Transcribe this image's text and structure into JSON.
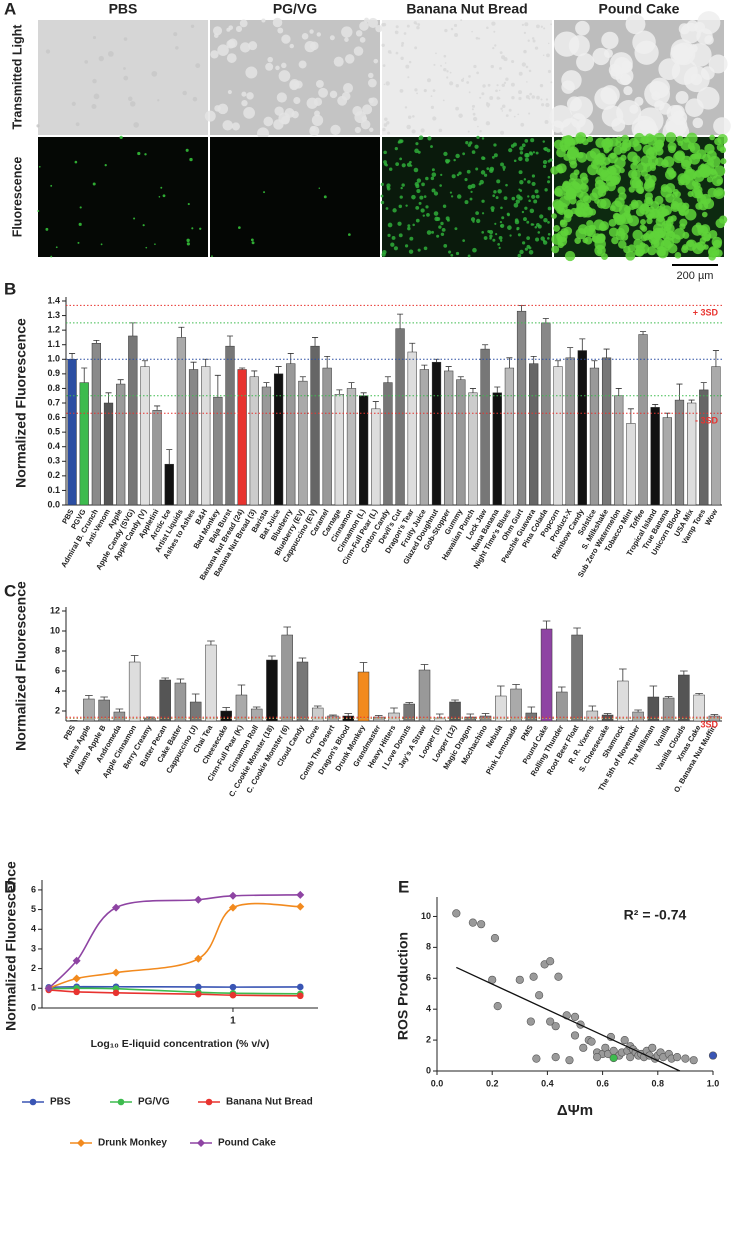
{
  "figure_a": {
    "panel": "A",
    "columns": [
      "PBS",
      "PG/VG",
      "Banana Nut Bread",
      "Pound Cake"
    ],
    "rows": [
      "Transmitted Light",
      "Fluorescence"
    ],
    "scale_bar": "200 µm"
  },
  "chart_data": [
    {
      "type": "bar",
      "panel": "B",
      "ylabel": "Normalized Fluorescence",
      "categories": [
        "PBS",
        "PGVG",
        "Admiral B. Crunch",
        "Anti-Venom",
        "Apple",
        "Apple Candy (SVG)",
        "Apple Candy (V)",
        "Appletini",
        "Arctic Ice",
        "Artist Liquids",
        "Ashes to Ashes",
        "B&H",
        "Bad Monkey",
        "Baja Burst",
        "Banana Nut Bread (24)",
        "Banana Nut Bread (3)",
        "Barista",
        "Bat Juice",
        "Blueberry",
        "Blueberry (EV)",
        "Cappuccino (EV)",
        "Caramel",
        "Carnage",
        "Cinnamon",
        "Cinnamon (L)",
        "Cinn-Full Pear (L)",
        "Cotton Candy",
        "Devil's Cut",
        "Dragon's Tear",
        "Fruity Juice",
        "Glazed Doughnut",
        "Gob-Stopper",
        "Gummy",
        "Hawaiian Punch",
        "Lock Jaw",
        "Nana Banana",
        "Night Time's Blues",
        "Ohm Gurt",
        "Peachie Guavara",
        "Pina Colada",
        "Popcorn",
        "Product-X",
        "Rainbow Candy",
        "Solstice",
        "S. Milkshake",
        "Sub Zero Watermelon",
        "Tobacco Mint",
        "Toffee",
        "Tropical Island",
        "True Banana",
        "Unicorn Blood",
        "USA Mix",
        "Vamp Toes",
        "Wow"
      ],
      "series": [
        {
          "values": [
            1.0,
            0.84,
            1.11,
            0.7,
            0.83,
            1.16,
            0.95,
            0.65,
            0.28,
            1.15,
            0.93,
            0.95,
            0.74,
            1.09,
            0.93,
            0.88,
            0.81,
            0.9,
            0.97,
            0.85,
            1.09,
            0.94,
            0.76,
            0.8,
            0.75,
            0.66,
            0.84,
            1.21,
            1.05,
            0.93,
            0.98,
            0.92,
            0.86,
            0.77,
            1.07,
            0.77,
            0.94,
            1.33,
            0.97,
            1.25,
            0.95,
            1.01,
            1.06,
            0.94,
            1.01,
            0.75,
            0.56,
            1.17,
            0.67,
            0.6,
            0.72,
            0.7,
            0.79,
            0.95
          ],
          "errors": [
            0.04,
            0.1,
            0.02,
            0.07,
            0.03,
            0.09,
            0.04,
            0.03,
            0.1,
            0.07,
            0.05,
            0.05,
            0.15,
            0.07,
            0.01,
            0.04,
            0.03,
            0.05,
            0.07,
            0.03,
            0.06,
            0.08,
            0.03,
            0.04,
            0.02,
            0.05,
            0.04,
            0.1,
            0.06,
            0.03,
            0.02,
            0.03,
            0.02,
            0.03,
            0.03,
            0.04,
            0.07,
            0.04,
            0.05,
            0.03,
            0.04,
            0.07,
            0.08,
            0.05,
            0.06,
            0.05,
            0.1,
            0.02,
            0.02,
            0.03,
            0.11,
            0.02,
            0.05,
            0.11
          ],
          "colors": [
            "#2b4ea2",
            "#3dbb4e",
            "#8a8a8a",
            "#555555",
            "#9a9a9a",
            "#777777",
            "#e0e0e0",
            "#9a9a9a",
            "#111111",
            "#aaaaaa",
            "#888888",
            "#dddddd",
            "#888888",
            "#777777",
            "#e8332f",
            "#cccccc",
            "#999999",
            "#111111",
            "#999999",
            "#aaaaaa",
            "#666666",
            "#999999",
            "#dddddd",
            "#bbbbbb",
            "#111111",
            "#dddddd",
            "#777777",
            "#777777",
            "#dddddd",
            "#aaaaaa",
            "#111111",
            "#aaaaaa",
            "#999999",
            "#cccccc",
            "#777777",
            "#111111",
            "#bbbbbb",
            "#888888",
            "#666666",
            "#888888",
            "#dddddd",
            "#999999",
            "#111111",
            "#999999",
            "#777777",
            "#aaaaaa",
            "#dddddd",
            "#999999",
            "#111111",
            "#aaaaaa",
            "#888888",
            "#dddddd",
            "#666666",
            "#aaaaaa"
          ]
        }
      ],
      "ylim": [
        0,
        1.4
      ],
      "yticks": [
        {
          "value": 0,
          "label": "0.0"
        },
        0.1,
        0.2,
        0.3,
        0.4,
        0.5,
        0.6,
        0.7,
        0.8,
        0.9,
        {
          "value": 1,
          "label": "1.0"
        },
        1.1,
        1.2,
        1.3,
        1.4
      ],
      "reference_lines": [
        {
          "value": 1.37,
          "color": "#e8332f",
          "label": "+ 3SD"
        },
        {
          "value": 1.25,
          "color": "#3dbb4e"
        },
        {
          "value": 1.0,
          "color": "#2b4ea2"
        },
        {
          "value": 0.75,
          "color": "#3dbb4e"
        },
        {
          "value": 0.63,
          "color": "#e8332f",
          "label": "- 3SD"
        }
      ]
    },
    {
      "type": "bar",
      "panel": "C",
      "ylabel": "Normalized Fluorescence",
      "categories": [
        "PBS",
        "Adams Apple",
        "Adams Apple B",
        "Andromeda",
        "Apple Cinnamon",
        "Berry Creamy",
        "Butter Pecan",
        "Cake Batter",
        "Cappuccino (J)",
        "Chai Tea",
        "Cheesecake",
        "Cinn-Full Pear (K)",
        "Cinnamon Roll",
        "C. Cookie Monster (18)",
        "C. Cookie Monster (6)",
        "Cloud Candy",
        "Clove",
        "Comb The Desert",
        "Dragon's Blood",
        "Drunk Monkey",
        "Grandmaster",
        "Heavy Hitters",
        "I Love Donuts",
        "Jay's A Straw",
        "Looper (3)",
        "Looper (12)",
        "Magic Dragon",
        "Mochachino",
        "Nebula",
        "Pink Lemonade",
        "PMS",
        "Pound Cake",
        "Rolling Thunder",
        "Root Beer Float",
        "R. R. Vixens",
        "S. Cheesecake",
        "Shamrock",
        "The 5th of November",
        "The Milkman",
        "Vanilla",
        "Vanilla Clouds",
        "Xmas Cake",
        "O. Banana Nut Muffin"
      ],
      "series": [
        {
          "values": [
            1.0,
            3.2,
            3.1,
            1.9,
            6.9,
            1.3,
            5.1,
            4.8,
            2.9,
            8.6,
            2.0,
            3.6,
            2.2,
            7.1,
            9.6,
            6.9,
            2.3,
            1.5,
            1.5,
            5.9,
            1.4,
            1.8,
            2.7,
            6.1,
            1.3,
            2.9,
            1.4,
            1.5,
            3.5,
            4.2,
            1.8,
            10.2,
            3.9,
            9.6,
            2.0,
            1.6,
            5.0,
            1.9,
            3.4,
            3.3,
            5.6,
            3.6,
            1.5
          ],
          "errors": [
            0.05,
            0.35,
            0.3,
            0.3,
            0.65,
            0.1,
            0.2,
            0.4,
            0.8,
            0.4,
            0.35,
            1.0,
            0.2,
            0.4,
            0.8,
            0.4,
            0.2,
            0.1,
            0.25,
            0.95,
            0.15,
            0.5,
            0.15,
            0.55,
            0.4,
            0.2,
            0.3,
            0.25,
            1.0,
            0.45,
            0.6,
            0.8,
            0.5,
            0.7,
            0.5,
            0.15,
            1.2,
            0.2,
            1.1,
            0.15,
            0.4,
            0.15,
            0.15
          ],
          "colors": [
            "#2b4ea2",
            "#aaaaaa",
            "#888888",
            "#999999",
            "#dddddd",
            "#888888",
            "#555555",
            "#999999",
            "#777777",
            "#dddddd",
            "#111111",
            "#aaaaaa",
            "#aaaaaa",
            "#111111",
            "#999999",
            "#777777",
            "#cccccc",
            "#aaaaaa",
            "#111111",
            "#f28a1e",
            "#aaaaaa",
            "#cccccc",
            "#777777",
            "#999999",
            "#dddddd",
            "#555555",
            "#777777",
            "#888888",
            "#dddddd",
            "#aaaaaa",
            "#777777",
            "#8e44a3",
            "#999999",
            "#777777",
            "#cccccc",
            "#555555",
            "#dddddd",
            "#aaaaaa",
            "#555555",
            "#999999",
            "#555555",
            "#dddddd",
            "#aaaaaa"
          ]
        }
      ],
      "ylim": [
        1,
        12
      ],
      "yticks": [
        2,
        4,
        6,
        8,
        10,
        12
      ],
      "reference_lines": [
        {
          "value": 1.37,
          "color": "#e8332f",
          "label": "3SD"
        },
        {
          "value": 1.25,
          "color": "#b8a060"
        }
      ]
    },
    {
      "type": "line",
      "panel": "D",
      "ylabel": "Normalized Fluorescence",
      "xlabel": "Log₁₀ E-liquid concentration (% v/v)",
      "xscale": "log",
      "x": [
        0.15,
        0.2,
        0.3,
        0.7,
        1,
        2
      ],
      "xlim": [
        0.14,
        2.4
      ],
      "xticks": [
        1
      ],
      "ylim": [
        0,
        6.3
      ],
      "yticks": [
        0,
        1,
        2,
        3,
        4,
        5,
        6
      ],
      "series": [
        {
          "name": "PBS",
          "color": "#3a55b4",
          "marker": "circle",
          "values": [
            1.05,
            1.08,
            1.08,
            1.07,
            1.06,
            1.07
          ]
        },
        {
          "name": "PG/VG",
          "color": "#3dbb4e",
          "marker": "circle",
          "values": [
            0.98,
            1.0,
            0.98,
            0.8,
            0.75,
            0.72
          ]
        },
        {
          "name": "Banana Nut Bread",
          "color": "#e8332f",
          "marker": "circle",
          "values": [
            0.92,
            0.82,
            0.77,
            0.7,
            0.65,
            0.62
          ]
        },
        {
          "name": "Drunk Monkey",
          "color": "#f28a1e",
          "marker": "diamond",
          "values": [
            1.0,
            1.5,
            1.8,
            2.5,
            5.1,
            5.15
          ]
        },
        {
          "name": "Pound Cake",
          "color": "#8e44a3",
          "marker": "diamond",
          "values": [
            1.0,
            2.4,
            5.1,
            5.5,
            5.7,
            5.75
          ]
        }
      ]
    },
    {
      "type": "scatter",
      "panel": "E",
      "ylabel": "ROS Production",
      "xlabel": "ΔΨm",
      "annotation": "R² = -0.74",
      "xlim": [
        0,
        1
      ],
      "xticks": [
        {
          "value": 0,
          "label": "0.0"
        },
        0.2,
        0.4,
        0.6,
        0.8,
        {
          "value": 1,
          "label": "1.0"
        }
      ],
      "ylim": [
        0,
        11
      ],
      "yticks": [
        0,
        2,
        4,
        6,
        8,
        10
      ],
      "trend_line": {
        "x": [
          0.07,
          0.88
        ],
        "y": [
          6.7,
          0
        ]
      },
      "series": [
        {
          "color": "#9a9a9a",
          "x": [
            0.07,
            0.13,
            0.16,
            0.21,
            0.2,
            0.22,
            0.3,
            0.34,
            0.35,
            0.37,
            0.39,
            0.41,
            0.41,
            0.43,
            0.44,
            0.47,
            0.5,
            0.5,
            0.52,
            0.53,
            0.55,
            0.56,
            0.58,
            0.6,
            0.61,
            0.62,
            0.63,
            0.64,
            0.66,
            0.67,
            0.68,
            0.69,
            0.7,
            0.7,
            0.71,
            0.72,
            0.73,
            0.74,
            0.75,
            0.76,
            0.77,
            0.78,
            0.79,
            0.8,
            0.81,
            0.82,
            0.84,
            0.85,
            0.87,
            0.9,
            0.93,
            0.36,
            0.43,
            0.48,
            0.58
          ],
          "values": [
            10.2,
            9.6,
            9.5,
            8.6,
            5.9,
            4.2,
            5.9,
            3.2,
            6.1,
            4.9,
            6.9,
            7.1,
            3.2,
            2.9,
            6.1,
            3.6,
            3.5,
            2.3,
            3.0,
            1.5,
            2.0,
            1.9,
            1.2,
            1.1,
            1.5,
            1.1,
            2.2,
            1.3,
            1.0,
            1.2,
            2.0,
            1.3,
            0.9,
            1.6,
            1.4,
            1.2,
            1.0,
            1.1,
            0.9,
            1.3,
            1.0,
            1.5,
            0.8,
            1.0,
            1.2,
            0.9,
            1.1,
            0.8,
            0.9,
            0.8,
            0.7,
            0.8,
            0.9,
            0.7,
            0.9
          ]
        },
        {
          "color": "#3dbb4e",
          "x": [
            0.64
          ],
          "values": [
            0.84
          ]
        },
        {
          "color": "#3a55b4",
          "x": [
            1.0
          ],
          "values": [
            1.0
          ]
        }
      ]
    }
  ]
}
